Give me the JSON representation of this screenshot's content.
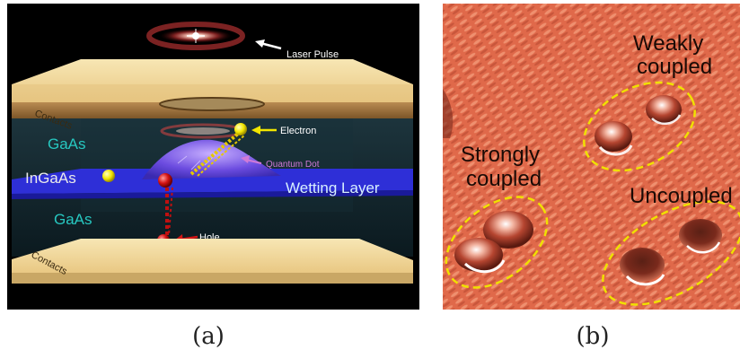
{
  "panel_a": {
    "labels": {
      "laser_pulse": "Laser Pulse",
      "contacts_top": "Contacts",
      "contacts_bottom": "Contacts",
      "electron": "Electron",
      "quantum_dot": "Quantum Dot",
      "gaas_top": "GaAs",
      "ingaas": "InGaAs",
      "gaas_bottom": "GaAs",
      "wetting_layer": "Wetting Layer",
      "hole": "Hole"
    },
    "colors": {
      "background": "#000000",
      "contact_plate": "#f3dca0",
      "wetting_layer": "#2f2fe0",
      "electron": "#f2e600",
      "hole": "#d41414",
      "layer_label": "#27c7c0",
      "quantum_dot_label": "#d07ad8"
    },
    "caption": "(a)"
  },
  "panel_b": {
    "labels": {
      "weakly": "Weakly\ncoupled",
      "weakly_line1": "Weakly",
      "weakly_line2": "coupled",
      "strongly_line1": "Strongly",
      "strongly_line2": "coupled",
      "uncoupled": "Uncoupled"
    },
    "colors": {
      "surface": "#e0694a",
      "ellipse": "#f0e000"
    },
    "caption": "(b)"
  }
}
